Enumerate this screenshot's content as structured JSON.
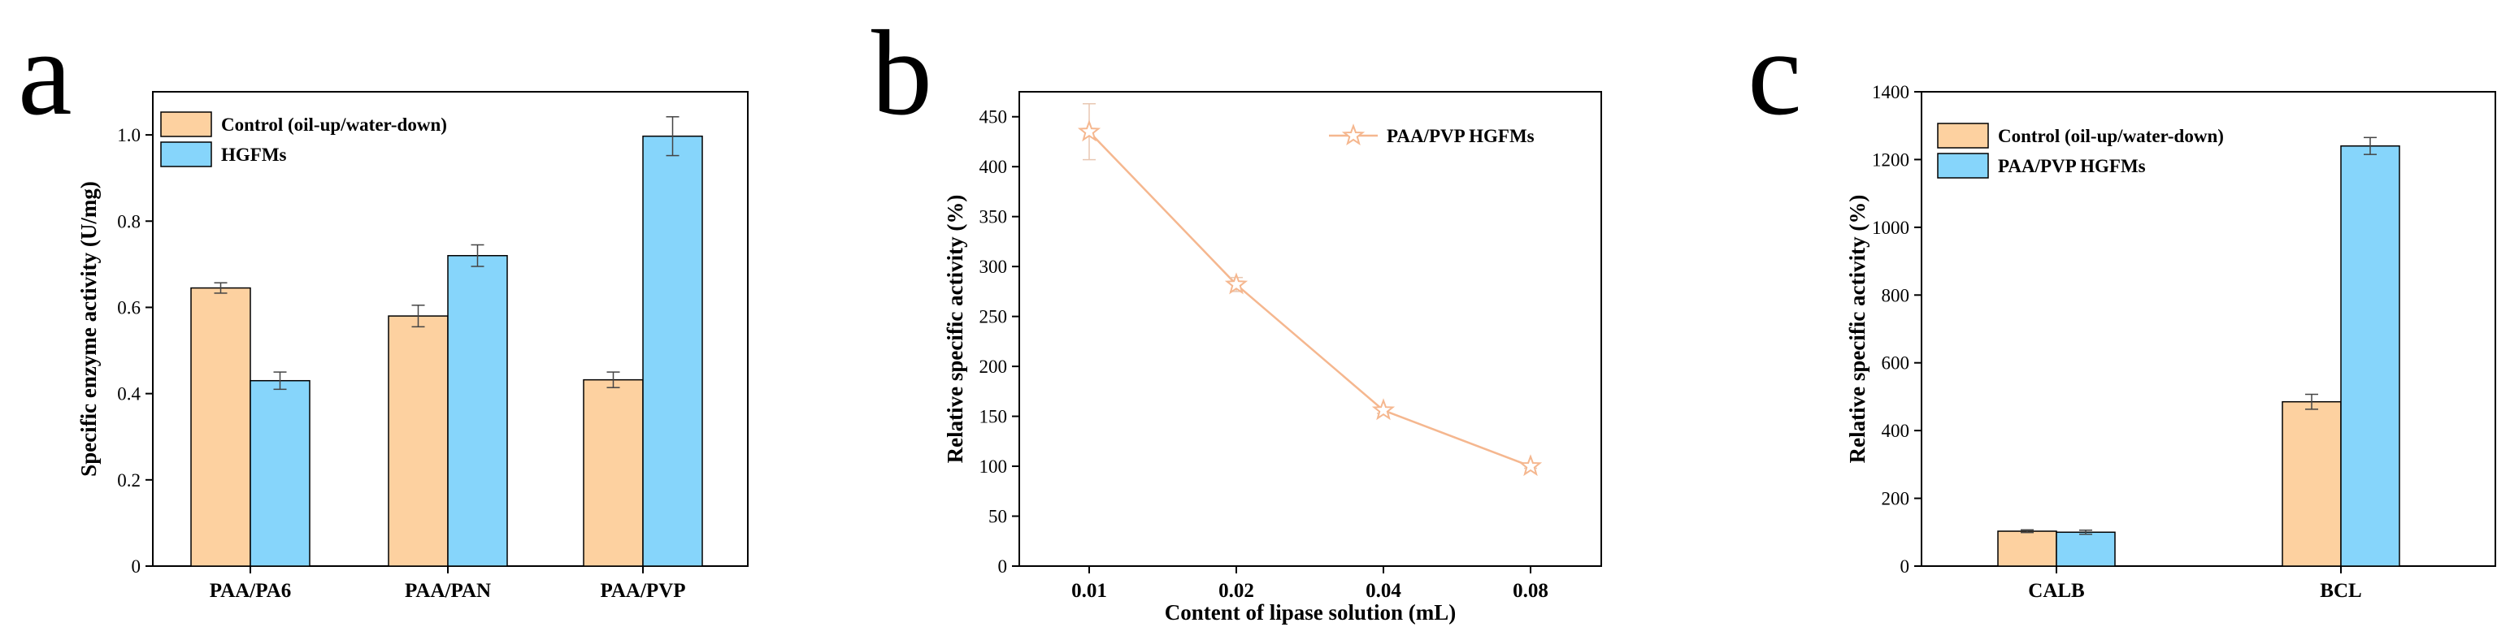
{
  "colors": {
    "control": "#FDD1A0",
    "hgfm": "#86D5FB",
    "line": "#F5B78F",
    "frame": "#000000"
  },
  "chart_data": [
    {
      "panel": "a",
      "type": "bar",
      "ylabel": "Specific enzyme activity (U/mg)",
      "xlabel": "",
      "ylim": [
        0,
        1.1
      ],
      "yticks": [
        "0",
        "0.2",
        "0.4",
        "0.6",
        "0.8",
        "1.0"
      ],
      "categories": [
        "PAA/PA6",
        "PAA/PAN",
        "PAA/PVP"
      ],
      "legend_position": "top-left",
      "series": [
        {
          "name": "Control (oil-up/water-down)",
          "values": [
            0.645,
            0.58,
            0.432
          ],
          "errors": [
            0.012,
            0.025,
            0.018
          ]
        },
        {
          "name": "HGFMs",
          "values": [
            0.43,
            0.72,
            0.997
          ],
          "errors": [
            0.02,
            0.025,
            0.045
          ]
        }
      ]
    },
    {
      "panel": "b",
      "type": "line",
      "ylabel": "Relative specific activity (%)",
      "xlabel": "Content of lipase solution (mL)",
      "ylim": [
        0,
        475
      ],
      "yticks": [
        "0",
        "50",
        "100",
        "150",
        "200",
        "250",
        "300",
        "350",
        "400",
        "450"
      ],
      "x": [
        "0.01",
        "0.02",
        "0.04",
        "0.08"
      ],
      "legend_position": "top-right",
      "series": [
        {
          "name": "PAA/PVP HGFMs",
          "values": [
            435,
            282,
            156,
            100
          ],
          "errors": [
            28,
            7,
            3,
            2
          ]
        }
      ]
    },
    {
      "panel": "c",
      "type": "bar",
      "ylabel": "Relative specific activity (%)",
      "xlabel": "",
      "ylim": [
        0,
        1400
      ],
      "yticks": [
        "0",
        "200",
        "400",
        "600",
        "800",
        "1000",
        "1200",
        "1400"
      ],
      "categories": [
        "CALB",
        "BCL"
      ],
      "legend_position": "top-left",
      "series": [
        {
          "name": "Control (oil-up/water-down)",
          "values": [
            103,
            485
          ],
          "errors": [
            4,
            22
          ]
        },
        {
          "name": "PAA/PVP HGFMs",
          "values": [
            100,
            1240
          ],
          "errors": [
            6,
            25
          ]
        }
      ]
    }
  ]
}
